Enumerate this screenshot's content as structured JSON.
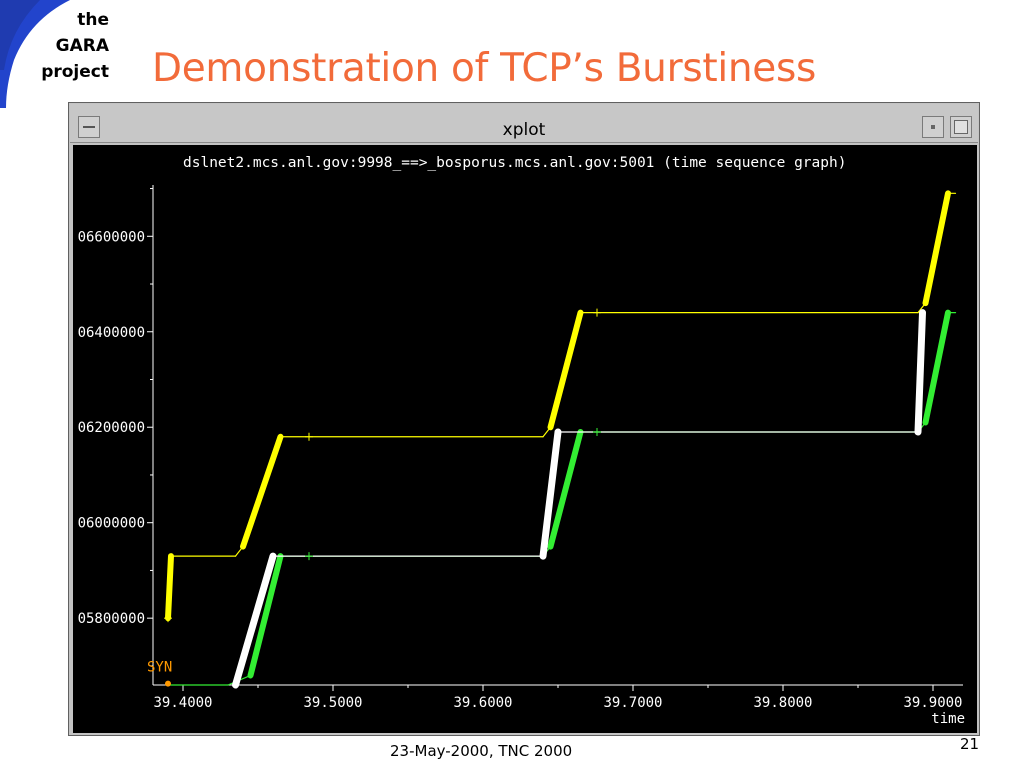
{
  "logo": {
    "lines": [
      "the",
      "GARA",
      "project"
    ]
  },
  "slide": {
    "title": "Demonstration of TCP’s Burstiness",
    "footer": "23-May-2000, TNC 2000",
    "page_number": "21"
  },
  "window": {
    "title": "xplot"
  },
  "graph": {
    "caption": "dslnet2.mcs.anl.gov:9998_==>_bosporus.mcs.anl.gov:5001 (time sequence graph)",
    "syn_label": "SYN",
    "xaxis_unit": "time"
  },
  "colors": {
    "title": "#f26b3a",
    "logo_blue": "#2244cc",
    "plot_background": "#000000",
    "advertised_window": "#ffff00",
    "ack": "#33ee33",
    "data_segments": "#ffffff",
    "syn": "#ff9900"
  },
  "chart_data": {
    "type": "line",
    "title": "dslnet2.mcs.anl.gov:9998_==>_bosporus.mcs.anl.gov:5001 (time sequence graph)",
    "xlabel": "time",
    "ylabel": "",
    "x_ticks": [
      "39.4000",
      "39.5000",
      "39.6000",
      "39.7000",
      "39.8000",
      "39.9000"
    ],
    "y_ticks": [
      "05800000",
      "06000000",
      "06200000",
      "06400000",
      "06600000"
    ],
    "xlim": [
      39.38,
      39.92
    ],
    "ylim": [
      5660000,
      6720000
    ],
    "grid": false,
    "series": [
      {
        "key": "window",
        "color": "#ffff00",
        "values": [
          [
            39.39,
            5800000
          ],
          [
            39.392,
            5930000
          ],
          [
            39.435,
            5930000
          ],
          [
            39.44,
            5950000
          ],
          [
            39.465,
            6180000
          ],
          [
            39.64,
            6180000
          ],
          [
            39.645,
            6200000
          ],
          [
            39.665,
            6440000
          ],
          [
            39.89,
            6440000
          ],
          [
            39.895,
            6460000
          ],
          [
            39.91,
            6690000
          ],
          [
            39.915,
            6690000
          ]
        ]
      },
      {
        "key": "ack",
        "color": "#33ee33",
        "values": [
          [
            39.39,
            5660000
          ],
          [
            39.43,
            5660000
          ],
          [
            39.445,
            5680000
          ],
          [
            39.465,
            5930000
          ],
          [
            39.64,
            5930000
          ],
          [
            39.645,
            5950000
          ],
          [
            39.665,
            6190000
          ],
          [
            39.89,
            6190000
          ],
          [
            39.895,
            6210000
          ],
          [
            39.91,
            6440000
          ],
          [
            39.915,
            6440000
          ]
        ]
      },
      {
        "key": "data",
        "color": "#ffffff",
        "values": [
          [
            39.435,
            5660000
          ],
          [
            39.46,
            5930000
          ],
          [
            39.64,
            5930000
          ],
          [
            39.65,
            6190000
          ],
          [
            39.89,
            6190000
          ],
          [
            39.893,
            6440000
          ]
        ]
      }
    ],
    "markers": [
      [
        39.484,
        6180000
      ],
      [
        39.484,
        5930000
      ],
      [
        39.676,
        6440000
      ],
      [
        39.676,
        6190000
      ],
      [
        39.39,
        5800000
      ]
    ],
    "syn_point": [
      39.39,
      5663000
    ]
  }
}
